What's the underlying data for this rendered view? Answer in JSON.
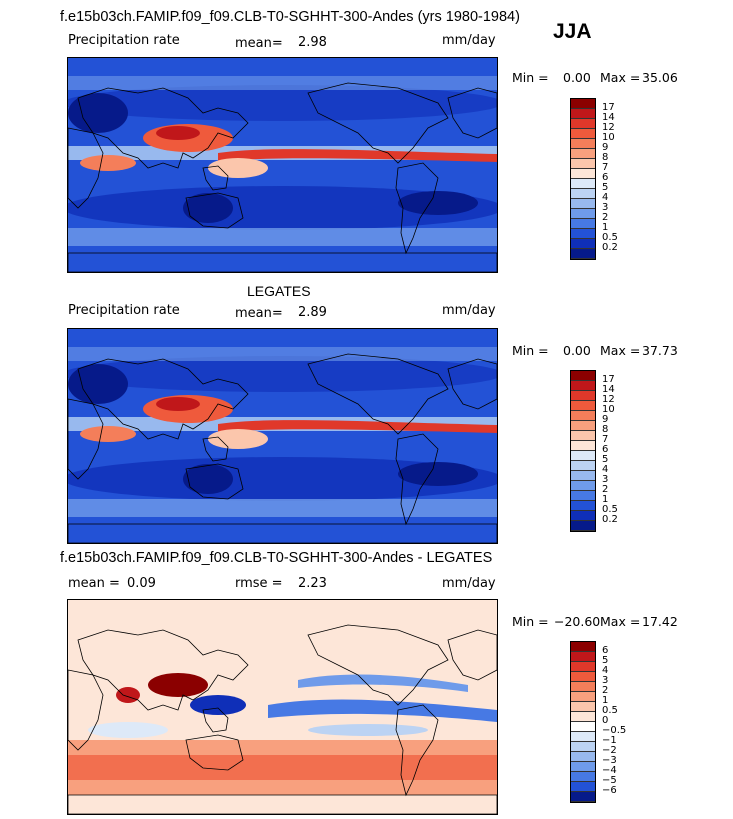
{
  "season": "JJA",
  "panel1": {
    "title": "f.e15b03ch.FAMIP.f09_f09.CLB-T0-SGHHT-300-Andes (yrs 1980-1984)",
    "variable": "Precipitation rate",
    "mean_label": "mean=",
    "mean_value": "2.98",
    "units": "mm/day",
    "min_label": "Min =",
    "min_value": "0.00",
    "max_label": "Max =",
    "max_value": "35.06"
  },
  "panel2": {
    "title": "LEGATES",
    "variable": "Precipitation rate",
    "mean_label": "mean=",
    "mean_value": "2.89",
    "units": "mm/day",
    "min_label": "Min =",
    "min_value": "0.00",
    "max_label": "Max =",
    "max_value": "37.73"
  },
  "panel3": {
    "title": "f.e15b03ch.FAMIP.f09_f09.CLB-T0-SGHHT-300-Andes - LEGATES",
    "mean_label": "mean =",
    "mean_value": "0.09",
    "rmse_label": "rmse =",
    "rmse_value": "2.23",
    "units": "mm/day",
    "min_label": "Min =",
    "min_value": "−20.60",
    "max_label": "Max =",
    "max_value": "17.42"
  },
  "chart_data": [
    {
      "type": "heatmap",
      "title": "f.e15b03ch.FAMIP.f09_f09.CLB-T0-SGHHT-300-Andes (yrs 1980-1984)",
      "variable": "Precipitation rate",
      "units": "mm/day",
      "mean": 2.98,
      "min": 0.0,
      "max": 35.06,
      "colorbar_levels": [
        "17",
        "14",
        "12",
        "10",
        "9",
        "8",
        "7",
        "6",
        "5",
        "4",
        "3",
        "2",
        "1",
        "0.5",
        "0.2"
      ],
      "colorbar_colors": [
        "#8b0000",
        "#c0171a",
        "#e0382a",
        "#ef5a3c",
        "#f47e5a",
        "#f8a07e",
        "#fbc6ac",
        "#fde6d8",
        "#dde9f8",
        "#bcd3f3",
        "#98b9ee",
        "#6f9bea",
        "#4779e4",
        "#2352d6",
        "#0f2fb8",
        "#061a8a"
      ],
      "map": "global equirectangular"
    },
    {
      "type": "heatmap",
      "title": "LEGATES",
      "variable": "Precipitation rate",
      "units": "mm/day",
      "mean": 2.89,
      "min": 0.0,
      "max": 37.73,
      "colorbar_levels": [
        "17",
        "14",
        "12",
        "10",
        "9",
        "8",
        "7",
        "6",
        "5",
        "4",
        "3",
        "2",
        "1",
        "0.5",
        "0.2"
      ],
      "colorbar_colors": [
        "#8b0000",
        "#c0171a",
        "#e0382a",
        "#ef5a3c",
        "#f47e5a",
        "#f8a07e",
        "#fbc6ac",
        "#fde6d8",
        "#dde9f8",
        "#bcd3f3",
        "#98b9ee",
        "#6f9bea",
        "#4779e4",
        "#2352d6",
        "#0f2fb8",
        "#061a8a"
      ],
      "map": "global equirectangular"
    },
    {
      "type": "heatmap",
      "title": "f.e15b03ch.FAMIP.f09_f09.CLB-T0-SGHHT-300-Andes - LEGATES",
      "units": "mm/day",
      "mean": 0.09,
      "rmse": 2.23,
      "min": -20.6,
      "max": 17.42,
      "colorbar_levels": [
        "6",
        "5",
        "4",
        "3",
        "2",
        "1",
        "0.5",
        "0",
        "−0.5",
        "−1",
        "−2",
        "−3",
        "−4",
        "−5",
        "−6"
      ],
      "colorbar_colors": [
        "#8b0000",
        "#c0171a",
        "#e0382a",
        "#ef5a3c",
        "#f47e5a",
        "#f8a07e",
        "#fbc6ac",
        "#fde6d8",
        "#ffffff",
        "#dde9f8",
        "#bcd3f3",
        "#98b9ee",
        "#6f9bea",
        "#4779e4",
        "#2352d6",
        "#061a8a"
      ],
      "map": "global equirectangular"
    }
  ]
}
